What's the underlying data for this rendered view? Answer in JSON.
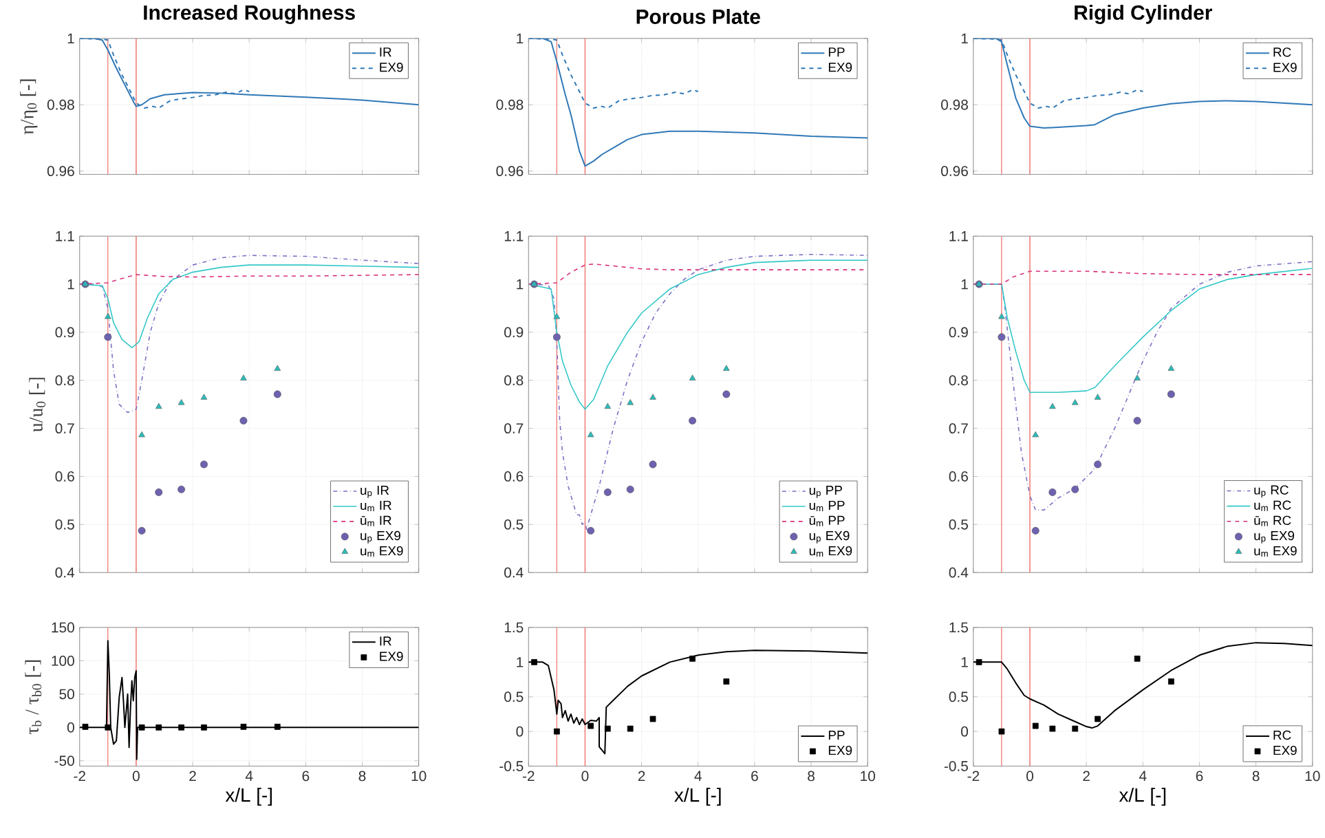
{
  "chart_data": [
    {
      "type": "line",
      "title": "Increased Roughness",
      "ylabel": "η/η$_{0}$ [-]",
      "xlim": [
        -2,
        10
      ],
      "ylim": [
        0.959,
        1
      ],
      "xticks": [
        -2,
        0,
        2,
        4,
        6,
        8,
        10
      ],
      "yticks": [
        0.96,
        0.98,
        1
      ],
      "tick_labels": "y",
      "grid": true,
      "legend": "top right",
      "ref_lines": [
        {
          "axis": "x",
          "value": -1,
          "color": "#f4807a"
        },
        {
          "axis": "x",
          "value": 0,
          "color": "#f4807a"
        }
      ],
      "series": [
        {
          "name": "IR",
          "type": "line",
          "color": "#2f78b7",
          "line_style": "solid",
          "x": [
            -2,
            -1.5,
            -1.2,
            -1,
            -0.7,
            -0.4,
            -0.1,
            0,
            0.2,
            0.5,
            1,
            2,
            3,
            4,
            6,
            8,
            10
          ],
          "values": [
            1,
            1,
            0.9995,
            0.9965,
            0.991,
            0.986,
            0.981,
            0.9795,
            0.98,
            0.9818,
            0.983,
            0.9837,
            0.9835,
            0.983,
            0.9823,
            0.9814,
            0.98
          ]
        },
        {
          "name": "EX9",
          "type": "line",
          "color": "#2f78b7",
          "line_style": "dashed",
          "x": [
            -2,
            -1.2,
            -1,
            -0.8,
            -0.5,
            -0.2,
            0,
            0.3,
            0.6,
            0.8,
            1.2,
            1.6,
            2,
            2.4,
            2.8,
            3.2,
            3.5,
            3.8,
            4
          ],
          "values": [
            1,
            0.9998,
            0.9995,
            0.995,
            0.989,
            0.984,
            0.9805,
            0.979,
            0.9795,
            0.979,
            0.9812,
            0.9818,
            0.9822,
            0.9828,
            0.983,
            0.9838,
            0.9833,
            0.9845,
            0.984
          ]
        }
      ]
    },
    {
      "type": "line",
      "title": "Porous Plate",
      "xlim": [
        -2,
        10
      ],
      "ylim": [
        0.959,
        1
      ],
      "xticks": [
        -2,
        0,
        2,
        4,
        6,
        8,
        10
      ],
      "yticks": [
        0.96,
        0.98,
        1
      ],
      "tick_labels": "y",
      "grid": true,
      "legend": "top right",
      "ref_lines": [
        {
          "axis": "x",
          "value": -1,
          "color": "#f4807a"
        },
        {
          "axis": "x",
          "value": 0,
          "color": "#f4807a"
        }
      ],
      "series": [
        {
          "name": "PP",
          "type": "line",
          "color": "#2f78b7",
          "line_style": "solid",
          "x": [
            -2,
            -1.5,
            -1.2,
            -1,
            -0.7,
            -0.5,
            -0.2,
            0,
            0.3,
            0.6,
            1,
            1.5,
            2,
            3,
            4,
            6,
            8,
            10
          ],
          "values": [
            1,
            1,
            0.999,
            0.993,
            0.983,
            0.977,
            0.966,
            0.9615,
            0.963,
            0.965,
            0.967,
            0.9695,
            0.971,
            0.972,
            0.972,
            0.9715,
            0.9705,
            0.97
          ]
        },
        {
          "name": "EX9",
          "type": "line",
          "color": "#2f78b7",
          "line_style": "dashed",
          "x": [
            -2,
            -1.2,
            -1,
            -0.8,
            -0.5,
            -0.2,
            0,
            0.3,
            0.6,
            0.8,
            1.2,
            1.6,
            2,
            2.4,
            2.8,
            3.2,
            3.5,
            3.8,
            4
          ],
          "values": [
            1,
            0.9998,
            0.9995,
            0.995,
            0.989,
            0.984,
            0.9805,
            0.979,
            0.9795,
            0.979,
            0.9812,
            0.9818,
            0.9822,
            0.9828,
            0.983,
            0.9838,
            0.9833,
            0.9845,
            0.984
          ]
        }
      ]
    },
    {
      "type": "line",
      "title": "Rigid Cylinder",
      "xlim": [
        -2,
        10
      ],
      "ylim": [
        0.959,
        1
      ],
      "xticks": [
        -2,
        0,
        2,
        4,
        6,
        8,
        10
      ],
      "yticks": [
        0.96,
        0.98,
        1
      ],
      "tick_labels": "y",
      "grid": true,
      "legend": "top right",
      "ref_lines": [
        {
          "axis": "x",
          "value": -1,
          "color": "#f4807a"
        },
        {
          "axis": "x",
          "value": 0,
          "color": "#f4807a"
        }
      ],
      "series": [
        {
          "name": "RC",
          "type": "line",
          "color": "#2f78b7",
          "line_style": "solid",
          "x": [
            -2,
            -1.2,
            -1,
            -0.8,
            -0.5,
            -0.2,
            0,
            0.5,
            1,
            2,
            2.3,
            3,
            4,
            5,
            6,
            7,
            8,
            10
          ],
          "values": [
            1,
            1,
            0.999,
            0.992,
            0.982,
            0.976,
            0.9735,
            0.973,
            0.9732,
            0.9737,
            0.974,
            0.977,
            0.979,
            0.9803,
            0.981,
            0.9812,
            0.981,
            0.98
          ]
        },
        {
          "name": "EX9",
          "type": "line",
          "color": "#2f78b7",
          "line_style": "dashed",
          "x": [
            -2,
            -1.2,
            -1,
            -0.8,
            -0.5,
            -0.2,
            0,
            0.3,
            0.6,
            0.8,
            1.2,
            1.6,
            2,
            2.4,
            2.8,
            3.2,
            3.5,
            3.8,
            4
          ],
          "values": [
            1,
            0.9998,
            0.9995,
            0.995,
            0.989,
            0.984,
            0.9805,
            0.979,
            0.9795,
            0.979,
            0.9812,
            0.9818,
            0.9822,
            0.9828,
            0.983,
            0.9838,
            0.9833,
            0.9845,
            0.984
          ]
        }
      ]
    },
    {
      "type": "line",
      "ylabel": "u/u$_{0}$ [-]",
      "xlim": [
        -2,
        10
      ],
      "ylim": [
        0.4,
        1.1
      ],
      "xticks": [
        -2,
        0,
        2,
        4,
        6,
        8,
        10
      ],
      "yticks": [
        0.4,
        0.5,
        0.6,
        0.7,
        0.8,
        0.9,
        1,
        1.1
      ],
      "tick_labels": "y",
      "grid": true,
      "legend": "bottom right",
      "ref_lines": [
        {
          "axis": "x",
          "value": -1,
          "color": "#f4807a"
        },
        {
          "axis": "x",
          "value": 0,
          "color": "#f4807a"
        }
      ],
      "series": [
        {
          "name": "u$_{p}$ IR",
          "type": "line",
          "color": "#7b6fc4",
          "line_style": "dashdot",
          "x": [
            -2,
            -1.5,
            -1.2,
            -1,
            -0.8,
            -0.6,
            -0.3,
            0,
            0.2,
            0.5,
            0.8,
            1.2,
            2,
            3,
            4,
            6,
            8,
            10
          ],
          "values": [
            1,
            1,
            0.995,
            0.95,
            0.82,
            0.75,
            0.733,
            0.74,
            0.8,
            0.9,
            0.96,
            1.005,
            1.04,
            1.055,
            1.06,
            1.058,
            1.05,
            1.043
          ]
        },
        {
          "name": "u$_{m}$ IR",
          "type": "line",
          "color": "#33c7c7",
          "line_style": "solid",
          "x": [
            -2,
            -1.2,
            -1,
            -0.8,
            -0.5,
            -0.15,
            0.1,
            0.4,
            0.8,
            1.3,
            2,
            3,
            4,
            6,
            10
          ],
          "values": [
            1,
            0.997,
            0.97,
            0.92,
            0.885,
            0.868,
            0.88,
            0.93,
            0.98,
            1.01,
            1.025,
            1.035,
            1.04,
            1.04,
            1.035
          ]
        },
        {
          "name": "ū$_{m}$ IR",
          "type": "line",
          "color": "#d8307a",
          "line_style": "dashed",
          "x": [
            -2,
            -1,
            -0.5,
            0,
            0.5,
            1,
            2,
            4,
            6,
            10
          ],
          "values": [
            1,
            1.003,
            1.012,
            1.02,
            1.018,
            1.016,
            1.015,
            1.017,
            1.017,
            1.02
          ]
        },
        {
          "name": "u$_{p}$ EX9",
          "type": "scatter",
          "marker": "circle",
          "color": "#6d62b0",
          "x": [
            -1.8,
            -1,
            0.2,
            0.8,
            1.6,
            2.4,
            3.8,
            5
          ],
          "values": [
            1,
            0.89,
            0.487,
            0.567,
            0.573,
            0.625,
            0.716,
            0.771
          ]
        },
        {
          "name": "u$_{m}$ EX9",
          "type": "scatter",
          "marker": "triangle",
          "color": "#2bbcb8",
          "x": [
            -1.8,
            -1,
            0.2,
            0.8,
            1.6,
            2.4,
            3.8,
            5
          ],
          "values": [
            1,
            0.932,
            0.686,
            0.745,
            0.753,
            0.764,
            0.804,
            0.824
          ]
        }
      ]
    },
    {
      "type": "line",
      "xlim": [
        -2,
        10
      ],
      "ylim": [
        0.4,
        1.1
      ],
      "xticks": [
        -2,
        0,
        2,
        4,
        6,
        8,
        10
      ],
      "yticks": [
        0.4,
        0.5,
        0.6,
        0.7,
        0.8,
        0.9,
        1,
        1.1
      ],
      "tick_labels": "y",
      "grid": true,
      "legend": "bottom right",
      "ref_lines": [
        {
          "axis": "x",
          "value": -1,
          "color": "#f4807a"
        },
        {
          "axis": "x",
          "value": 0,
          "color": "#f4807a"
        }
      ],
      "series": [
        {
          "name": "u$_{p}$ PP",
          "type": "line",
          "color": "#7b6fc4",
          "line_style": "dashdot",
          "x": [
            -2,
            -1.3,
            -1.1,
            -1,
            -0.9,
            -0.8,
            -0.6,
            -0.4,
            -0.3,
            -0.2,
            -0.1,
            0,
            0.05,
            0.5,
            1,
            1.5,
            2,
            2.5,
            3,
            3.5,
            4,
            5,
            6,
            8,
            10
          ],
          "values": [
            1,
            0.998,
            0.97,
            0.88,
            0.72,
            0.65,
            0.58,
            0.54,
            0.52,
            0.52,
            0.5,
            0.505,
            0.49,
            0.58,
            0.7,
            0.8,
            0.88,
            0.94,
            0.98,
            1.01,
            1.03,
            1.05,
            1.058,
            1.062,
            1.06
          ]
        },
        {
          "name": "u$_{m}$ PP",
          "type": "line",
          "color": "#33c7c7",
          "line_style": "solid",
          "x": [
            -2,
            -1.2,
            -1,
            -0.8,
            -0.5,
            -0.2,
            0,
            0.3,
            0.8,
            1.5,
            2,
            3,
            4,
            5,
            6,
            8,
            10
          ],
          "values": [
            1,
            0.99,
            0.9,
            0.84,
            0.79,
            0.755,
            0.74,
            0.76,
            0.83,
            0.9,
            0.94,
            0.99,
            1.02,
            1.035,
            1.045,
            1.05,
            1.05
          ]
        },
        {
          "name": "ū$_{m}$ PP",
          "type": "line",
          "color": "#d8307a",
          "line_style": "dashed",
          "x": [
            -2,
            -1,
            -0.5,
            0,
            0.3,
            1,
            2,
            3,
            6,
            10
          ],
          "values": [
            1,
            1.003,
            1.025,
            1.04,
            1.042,
            1.038,
            1.032,
            1.03,
            1.03,
            1.03
          ]
        },
        {
          "name": "u$_{p}$ EX9",
          "type": "scatter",
          "marker": "circle",
          "color": "#6d62b0",
          "x": [
            -1.8,
            -1,
            0.2,
            0.8,
            1.6,
            2.4,
            3.8,
            5
          ],
          "values": [
            1,
            0.89,
            0.487,
            0.567,
            0.573,
            0.625,
            0.716,
            0.771
          ]
        },
        {
          "name": "u$_{m}$ EX9",
          "type": "scatter",
          "marker": "triangle",
          "color": "#2bbcb8",
          "x": [
            -1.8,
            -1,
            0.2,
            0.8,
            1.6,
            2.4,
            3.8,
            5
          ],
          "values": [
            1,
            0.932,
            0.686,
            0.745,
            0.753,
            0.764,
            0.804,
            0.824
          ]
        }
      ]
    },
    {
      "type": "line",
      "xlim": [
        -2,
        10
      ],
      "ylim": [
        0.4,
        1.1
      ],
      "xticks": [
        -2,
        0,
        2,
        4,
        6,
        8,
        10
      ],
      "yticks": [
        0.4,
        0.5,
        0.6,
        0.7,
        0.8,
        0.9,
        1,
        1.1
      ],
      "tick_labels": "y",
      "grid": true,
      "legend": "bottom right",
      "ref_lines": [
        {
          "axis": "x",
          "value": -1,
          "color": "#f4807a"
        },
        {
          "axis": "x",
          "value": 0,
          "color": "#f4807a"
        }
      ],
      "series": [
        {
          "name": "u$_{p}$ RC",
          "type": "line",
          "color": "#7b6fc4",
          "line_style": "dashdot",
          "x": [
            -2,
            -1,
            -0.9,
            -0.6,
            -0.3,
            0,
            0.2,
            0.5,
            1,
            1.6,
            2.2,
            2.5,
            3,
            3.5,
            4,
            4.5,
            5,
            6,
            7,
            8,
            10
          ],
          "values": [
            1,
            1,
            0.96,
            0.8,
            0.65,
            0.56,
            0.53,
            0.53,
            0.555,
            0.575,
            0.61,
            0.64,
            0.7,
            0.77,
            0.84,
            0.9,
            0.95,
            1,
            1.025,
            1.038,
            1.047
          ]
        },
        {
          "name": "u$_{m}$ RC",
          "type": "line",
          "color": "#33c7c7",
          "line_style": "solid",
          "x": [
            -2,
            -1,
            -0.8,
            -0.5,
            -0.2,
            0,
            1,
            2,
            2.3,
            3,
            4,
            5,
            6,
            7,
            8,
            10
          ],
          "values": [
            1,
            1,
            0.93,
            0.86,
            0.8,
            0.775,
            0.775,
            0.778,
            0.785,
            0.83,
            0.89,
            0.945,
            0.99,
            1.01,
            1.02,
            1.033
          ]
        },
        {
          "name": "ū$_{m}$ RC",
          "type": "line",
          "color": "#d8307a",
          "line_style": "dashed",
          "x": [
            -2,
            -1,
            -0.6,
            0,
            2,
            4,
            6,
            8,
            10
          ],
          "values": [
            1,
            1,
            1.015,
            1.027,
            1.027,
            1.022,
            1.02,
            1.02,
            1.02
          ]
        },
        {
          "name": "u$_{p}$ EX9",
          "type": "scatter",
          "marker": "circle",
          "color": "#6d62b0",
          "x": [
            -1.8,
            -1,
            0.2,
            0.8,
            1.6,
            2.4,
            3.8,
            5
          ],
          "values": [
            1,
            0.89,
            0.487,
            0.567,
            0.573,
            0.625,
            0.716,
            0.771
          ]
        },
        {
          "name": "u$_{m}$ EX9",
          "type": "scatter",
          "marker": "triangle",
          "color": "#2bbcb8",
          "x": [
            -1.8,
            -1,
            0.2,
            0.8,
            1.6,
            2.4,
            3.8,
            5
          ],
          "values": [
            1,
            0.932,
            0.686,
            0.745,
            0.753,
            0.764,
            0.804,
            0.824
          ]
        }
      ]
    },
    {
      "type": "line",
      "xlabel": "x/L [-]",
      "ylabel": "τ$_{b}$ / τ$_{b0}$ [-]",
      "xlim": [
        -2,
        10
      ],
      "ylim": [
        -58,
        150
      ],
      "xticks": [
        -2,
        0,
        2,
        4,
        6,
        8,
        10
      ],
      "yticks": [
        -50,
        0,
        50,
        100,
        150
      ],
      "grid": true,
      "legend": "top right",
      "ref_lines": [
        {
          "axis": "x",
          "value": -1,
          "color": "#f4807a"
        },
        {
          "axis": "x",
          "value": 0,
          "color": "#f4807a"
        }
      ],
      "series": [
        {
          "name": "IR",
          "type": "line",
          "color": "#000000",
          "line_style": "solid",
          "x": [
            -2,
            -1.05,
            -1,
            -0.95,
            -0.9,
            -0.8,
            -0.7,
            -0.6,
            -0.5,
            -0.45,
            -0.4,
            -0.3,
            -0.25,
            -0.2,
            -0.15,
            -0.1,
            -0.05,
            0,
            0.02,
            0.05,
            10
          ],
          "values": [
            0,
            0,
            130,
            80,
            0,
            -25,
            -20,
            45,
            75,
            40,
            0,
            50,
            -30,
            30,
            70,
            40,
            75,
            85,
            -48,
            0,
            0
          ]
        },
        {
          "name": "EX9",
          "type": "scatter",
          "marker": "square",
          "color": "#000000",
          "x": [
            -1.8,
            -1,
            0.2,
            0.8,
            1.6,
            2.4,
            3.8,
            5
          ],
          "values": [
            1,
            0,
            0,
            0,
            0,
            0,
            1,
            1
          ]
        }
      ]
    },
    {
      "type": "line",
      "xlabel": "x/L [-]",
      "xlim": [
        -2,
        10
      ],
      "ylim": [
        -0.5,
        1.5
      ],
      "xticks": [
        -2,
        0,
        2,
        4,
        6,
        8,
        10
      ],
      "yticks": [
        -0.5,
        0,
        0.5,
        1,
        1.5
      ],
      "grid": true,
      "legend": "bottom right",
      "ref_lines": [
        {
          "axis": "x",
          "value": -1,
          "color": "#f4807a"
        },
        {
          "axis": "x",
          "value": 0,
          "color": "#f4807a"
        }
      ],
      "series": [
        {
          "name": "PP",
          "type": "line",
          "color": "#000000",
          "line_style": "solid",
          "x": [
            -2,
            -1.5,
            -1.3,
            -1.1,
            -1,
            -0.95,
            -0.85,
            -0.8,
            -0.7,
            -0.6,
            -0.5,
            -0.4,
            -0.3,
            -0.2,
            -0.1,
            0,
            0.2,
            0.4,
            0.5,
            0.5,
            0.7,
            0.75,
            1,
            1.5,
            2,
            3,
            4,
            5,
            6,
            8,
            10
          ],
          "values": [
            1,
            1,
            0.95,
            0.6,
            0.25,
            0.45,
            0.4,
            0.2,
            0.3,
            0.15,
            0.25,
            0.12,
            0.2,
            0.1,
            0.18,
            0.1,
            0.16,
            0.15,
            0.2,
            -0.22,
            -0.32,
            0.35,
            0.45,
            0.65,
            0.8,
            1,
            1.1,
            1.15,
            1.17,
            1.16,
            1.13
          ]
        },
        {
          "name": "EX9",
          "type": "scatter",
          "marker": "square",
          "color": "#000000",
          "x": [
            -1.8,
            -1,
            0.2,
            0.8,
            1.6,
            2.4,
            3.8,
            5
          ],
          "values": [
            1,
            0,
            0.08,
            0.04,
            0.04,
            0.18,
            1.05,
            0.72
          ]
        }
      ]
    },
    {
      "type": "line",
      "xlabel": "x/L [-]",
      "xlim": [
        -2,
        10
      ],
      "ylim": [
        -0.5,
        1.5
      ],
      "xticks": [
        -2,
        0,
        2,
        4,
        6,
        8,
        10
      ],
      "yticks": [
        -0.5,
        0,
        0.5,
        1,
        1.5
      ],
      "grid": true,
      "legend": "bottom right",
      "ref_lines": [
        {
          "axis": "x",
          "value": -1,
          "color": "#f4807a"
        },
        {
          "axis": "x",
          "value": 0,
          "color": "#f4807a"
        }
      ],
      "series": [
        {
          "name": "RC",
          "type": "line",
          "color": "#000000",
          "line_style": "solid",
          "x": [
            -2,
            -1,
            -0.8,
            -0.5,
            -0.2,
            0,
            0.5,
            1,
            1.5,
            2,
            2.2,
            2.4,
            3,
            4,
            5,
            6,
            7,
            8,
            9,
            10
          ],
          "values": [
            1,
            1,
            0.9,
            0.7,
            0.52,
            0.47,
            0.38,
            0.25,
            0.16,
            0.07,
            0.05,
            0.08,
            0.3,
            0.6,
            0.88,
            1.1,
            1.23,
            1.28,
            1.27,
            1.24
          ]
        },
        {
          "name": "EX9",
          "type": "scatter",
          "marker": "square",
          "color": "#000000",
          "x": [
            -1.8,
            -1,
            0.2,
            0.8,
            1.6,
            2.4,
            3.8,
            5
          ],
          "values": [
            1,
            0,
            0.08,
            0.04,
            0.04,
            0.18,
            1.05,
            0.72
          ]
        }
      ]
    }
  ]
}
